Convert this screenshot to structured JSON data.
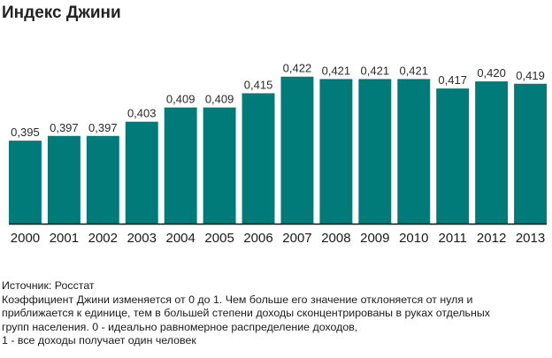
{
  "chart_data": {
    "type": "bar",
    "title": "Индекс Джини",
    "categories": [
      "2000",
      "2001",
      "2002",
      "2003",
      "2004",
      "2005",
      "2006",
      "2007",
      "2008",
      "2009",
      "2010",
      "2011",
      "2012",
      "2013"
    ],
    "values": [
      0.395,
      0.397,
      0.397,
      0.403,
      0.409,
      0.409,
      0.415,
      0.422,
      0.421,
      0.421,
      0.421,
      0.417,
      0.42,
      0.419
    ],
    "value_labels": [
      "0,395",
      "0,397",
      "0,397",
      "0,403",
      "0,409",
      "0,409",
      "0,415",
      "0,422",
      "0,421",
      "0,421",
      "0,421",
      "0,417",
      "0,420",
      "0,419"
    ],
    "xlabel": "",
    "ylabel": "",
    "ylim": [
      0.36,
      0.426
    ],
    "grid": false,
    "legend": "none",
    "bar_color": "#007b7a",
    "baseline_color": "#111111"
  },
  "notes": {
    "source": "Источник: Росстат",
    "line1": "Коэффициент Джини изменяется от 0 до 1. Чем больше его значение отклоняется от нуля и",
    "line2": "приближается к единице, тем в большей степени доходы сконцентрированы в руках отдельных",
    "line3": "групп населения. 0 - идеально равномерное распределение доходов,",
    "line4": "1 - все доходы получает один человек"
  }
}
